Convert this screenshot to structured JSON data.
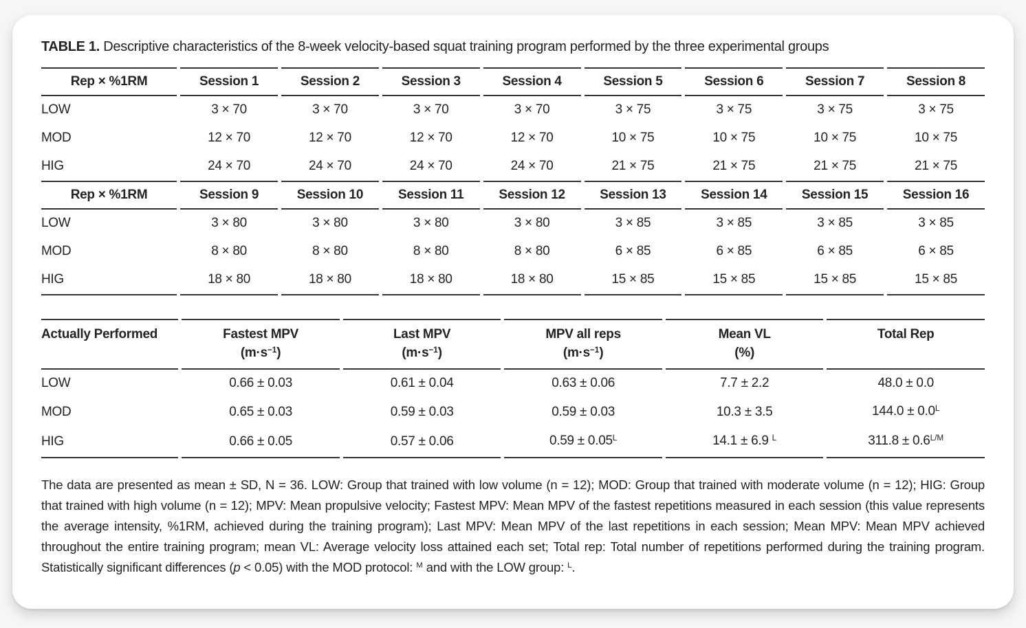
{
  "page": {
    "card_background": "#ffffff",
    "page_background": "#f6f6f7",
    "text_color": "#232323",
    "rule_color": "#333336"
  },
  "title": {
    "label": "TABLE 1.",
    "text": "Descriptive characteristics of the 8-week velocity-based squat training program performed by the three experimental groups"
  },
  "sessions_table": {
    "blocks": [
      {
        "header": [
          "Rep × %1RM",
          "Session 1",
          "Session 2",
          "Session 3",
          "Session 4",
          "Session 5",
          "Session 6",
          "Session 7",
          "Session 8"
        ],
        "rows": [
          {
            "label": "LOW",
            "values": [
              "3 × 70",
              "3 × 70",
              "3 × 70",
              "3 × 70",
              "3 × 75",
              "3 × 75",
              "3 × 75",
              "3 × 75"
            ]
          },
          {
            "label": "MOD",
            "values": [
              "12 × 70",
              "12 × 70",
              "12 × 70",
              "12 × 70",
              "10 × 75",
              "10 × 75",
              "10 × 75",
              "10 × 75"
            ]
          },
          {
            "label": "HIG",
            "values": [
              "24 × 70",
              "24 × 70",
              "24 × 70",
              "24 × 70",
              "21 × 75",
              "21 × 75",
              "21 × 75",
              "21 × 75"
            ]
          }
        ]
      },
      {
        "header": [
          "Rep × %1RM",
          "Session 9",
          "Session 10",
          "Session 11",
          "Session 12",
          "Session 13",
          "Session 14",
          "Session 15",
          "Session 16"
        ],
        "rows": [
          {
            "label": "LOW",
            "values": [
              "3 × 80",
              "3 × 80",
              "3 × 80",
              "3 × 80",
              "3 × 85",
              "3 × 85",
              "3 × 85",
              "3 × 85"
            ]
          },
          {
            "label": "MOD",
            "values": [
              "8 × 80",
              "8 × 80",
              "8 × 80",
              "8 × 80",
              "6 × 85",
              "6 × 85",
              "6 × 85",
              "6 × 85"
            ]
          },
          {
            "label": "HIG",
            "values": [
              "18 × 80",
              "18 × 80",
              "18 × 80",
              "18 × 80",
              "15 × 85",
              "15 × 85",
              "15 × 85",
              "15 × 85"
            ]
          }
        ]
      }
    ]
  },
  "performance_table": {
    "headers": [
      {
        "name": "Actually Performed",
        "unit": ""
      },
      {
        "name": "Fastest MPV",
        "unit": "(m·s^−1^)"
      },
      {
        "name": "Last MPV",
        "unit": "(m·s^−1^)"
      },
      {
        "name": "MPV all reps",
        "unit": "(m·s^−1^)"
      },
      {
        "name": "Mean VL",
        "unit": "(%)"
      },
      {
        "name": "Total Rep",
        "unit": ""
      }
    ],
    "rows": [
      {
        "label": "LOW",
        "values": [
          "0.66 ± 0.03",
          "0.61 ± 0.04",
          "0.63 ± 0.06",
          "7.7 ± 2.2",
          "48.0 ± 0.0"
        ]
      },
      {
        "label": "MOD",
        "values": [
          "0.65 ± 0.03",
          "0.59 ± 0.03",
          "0.59 ± 0.03",
          "10.3 ± 3.5",
          "144.0 ± 0.0^L^"
        ]
      },
      {
        "label": "HIG",
        "values": [
          "0.66 ± 0.05",
          "0.57 ± 0.06",
          "0.59 ± 0.05^L^",
          "14.1 ± 6.9 ^L^",
          "311.8 ± 0.6^L/M^"
        ]
      }
    ]
  },
  "footnote": {
    "segments": [
      {
        "text": "The data are presented as mean ± SD, N = 36. LOW: Group that trained with low volume (n = 12); MOD: Group that trained with moderate volume (n = 12); HIG: Group that trained with high volume (n = 12); MPV: Mean propulsive velocity; Fastest MPV: Mean MPV of the fastest repetitions measured in each session (this value represents the average intensity, %1RM, achieved during the training program); Last MPV: Mean MPV of the last repetitions in each session; Mean MPV: Mean MPV achieved throughout the entire training program; mean VL: Average velocity loss attained each set; Total rep: Total number of repetitions performed during the training program. Statistically significant differences ("
      },
      {
        "text": "p",
        "style": "italic"
      },
      {
        "text": " < 0.05) with the MOD protocol: "
      },
      {
        "text": "M",
        "style": "sup"
      },
      {
        "text": " and with the LOW group: "
      },
      {
        "text": "L",
        "style": "sup"
      },
      {
        "text": "."
      }
    ]
  }
}
